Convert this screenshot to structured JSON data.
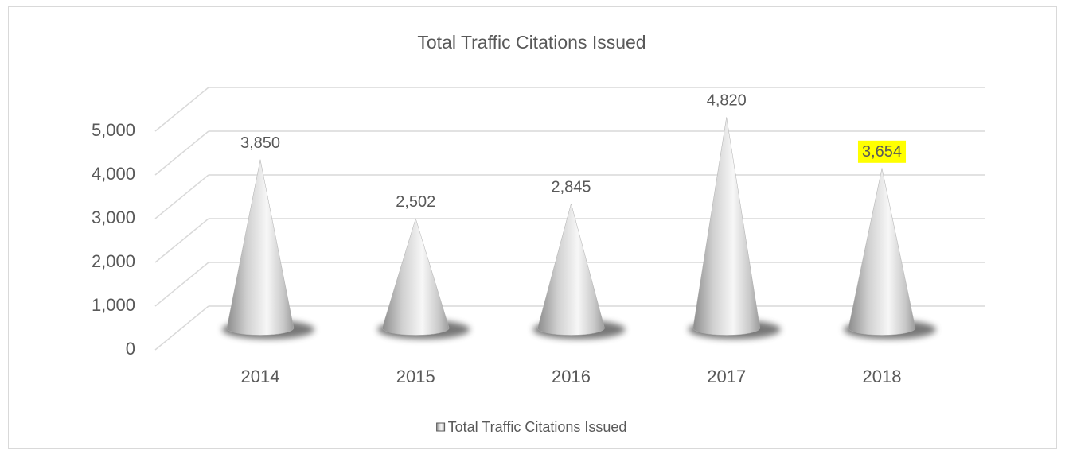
{
  "chart_data": {
    "type": "cone3d",
    "title": "Total Traffic Citations Issued",
    "categories": [
      "2014",
      "2015",
      "2016",
      "2017",
      "2018"
    ],
    "series": [
      {
        "name": "Total Traffic Citations Issued",
        "color": "#d9d9d9",
        "values": [
          3850,
          2502,
          2845,
          4820,
          3654
        ],
        "value_labels": [
          "3,850",
          "2,502",
          "2,845",
          "4,820",
          "3,654"
        ]
      }
    ],
    "ylim": [
      0,
      5000
    ],
    "yticks": [
      0,
      {
        "value": 1000,
        "label": "1,000"
      },
      {
        "value": 2000,
        "label": "2,000"
      },
      {
        "value": 3000,
        "label": "3,000"
      },
      {
        "value": 4000,
        "label": "4,000"
      },
      {
        "value": 5000,
        "label": "5,000"
      }
    ],
    "grid": true,
    "legend": "bottom",
    "highlighted_label": {
      "index": 4,
      "color": "#ffff00"
    }
  }
}
